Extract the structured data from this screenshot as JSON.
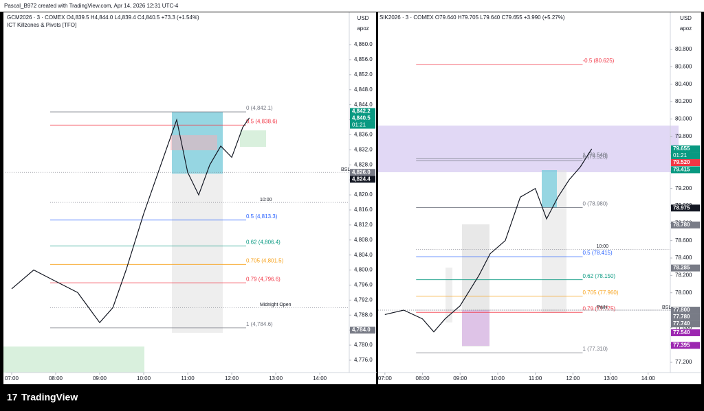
{
  "header": {
    "credit": "Pascal_B972 created with TradingView.com, Apr 14, 2026 12:31 UTC-4"
  },
  "panels": [
    {
      "symbol": "GCM2026 · 3 · COMEX  O4,839.5  H4,844.0  L4,839.4  C4,840.5  +73.3 (+1.54%)",
      "indicator": "ICT Killzones & Pivots [TFO]",
      "currency": "USD",
      "unit": "apoz",
      "ylim": [
        4772.7,
        4868.6
      ],
      "yticks": [
        {
          "value": 4776,
          "label": "4,776.0"
        },
        {
          "value": 4780,
          "label": "4,780.0"
        },
        {
          "value": 4784,
          "label": "4,784.0"
        },
        {
          "value": 4788,
          "label": "4,788.0"
        },
        {
          "value": 4792,
          "label": "4,792.0"
        },
        {
          "value": 4796,
          "label": "4,796.0"
        },
        {
          "value": 4800,
          "label": "4,800.0"
        },
        {
          "value": 4804,
          "label": "4,804.0"
        },
        {
          "value": 4808,
          "label": "4,808.0"
        },
        {
          "value": 4812,
          "label": "4,812.0"
        },
        {
          "value": 4816,
          "label": "4,816.0"
        },
        {
          "value": 4820,
          "label": "4,820.0"
        },
        {
          "value": 4824,
          "label": "4,824.0"
        },
        {
          "value": 4828,
          "label": "4,828.0"
        },
        {
          "value": 4832,
          "label": "4,832.0"
        },
        {
          "value": 4836,
          "label": "4,836.0"
        },
        {
          "value": 4840,
          "label": "4,840.0"
        },
        {
          "value": 4844,
          "label": "4,844.0"
        },
        {
          "value": 4848,
          "label": "4,848.0"
        },
        {
          "value": 4852,
          "label": "4,852.0"
        },
        {
          "value": 4856,
          "label": "4,856.0"
        },
        {
          "value": 4860,
          "label": "4,860.0"
        }
      ],
      "xlim": [
        6.86,
        14.67
      ],
      "xticks": [
        {
          "value": 7,
          "label": "07:00"
        },
        {
          "value": 8,
          "label": "08:00"
        },
        {
          "value": 9,
          "label": "09:00"
        },
        {
          "value": 10,
          "label": "10:00"
        },
        {
          "value": 11,
          "label": "11:00"
        },
        {
          "value": 12,
          "label": "12:00"
        },
        {
          "value": 13,
          "label": "13:00"
        },
        {
          "value": 14,
          "label": "14:00"
        }
      ],
      "x": [
        7.0,
        7.5,
        8.0,
        8.5,
        9.0,
        9.3,
        9.6,
        10.0,
        10.3,
        10.6,
        10.75,
        11.0,
        11.25,
        11.5,
        11.75,
        12.0,
        12.25,
        12.4
      ],
      "close": [
        4795,
        4800,
        4797,
        4794,
        4786,
        4790,
        4800,
        4815,
        4825,
        4835,
        4840,
        4826,
        4820,
        4828,
        4833,
        4830,
        4838,
        4840.5
      ],
      "levels": [
        {
          "label": "0 (4,842.1)",
          "value": 4842.1,
          "color": "#787b86"
        },
        {
          "label": "0.5 (4,838.6)",
          "value": 4838.6,
          "color": "#f23645"
        },
        {
          "label": "0.5 (4,813.3)",
          "value": 4813.3,
          "color": "#2962ff"
        },
        {
          "label": "0.62 (4,806.4)",
          "value": 4806.4,
          "color": "#089981"
        },
        {
          "label": "0.705 (4,801.5)",
          "value": 4801.5,
          "color": "#f7a21b"
        },
        {
          "label": "0.79 (4,796.6)",
          "value": 4796.6,
          "color": "#f23645"
        },
        {
          "label": "1 (4,784.6)",
          "value": 4784.6,
          "color": "#787b86"
        }
      ],
      "notes": [
        {
          "label": "10:00",
          "value": 4818
        },
        {
          "label": "Midnight Open",
          "value": 4790
        },
        {
          "label": "BSL",
          "value": 4826
        }
      ],
      "badges": [
        {
          "label": "4,842.2",
          "value": 4842.2,
          "color": "#089981"
        },
        {
          "label": "4,840.5",
          "value": 4840.5,
          "color": "#089981"
        },
        {
          "label": "4,826.0",
          "value": 4826,
          "color": "#787b86"
        },
        {
          "label": "4,824.4",
          "value": 4824.4,
          "color": "#131722"
        },
        {
          "label": "4,784.0",
          "value": 4784,
          "color": "#787b86"
        }
      ],
      "timer": "01:21"
    },
    {
      "symbol": "SIK2026 · 3 · COMEX  O79.640  H79.705  L79.640  C79.655  +3.990 (+5.27%)",
      "indicator": "",
      "currency": "USD",
      "unit": "apoz",
      "ylim": [
        77.082,
        81.226
      ],
      "yticks": [
        {
          "value": 77.2,
          "label": "77.200"
        },
        {
          "value": 77.4,
          "label": "77.400"
        },
        {
          "value": 77.6,
          "label": "77.600"
        },
        {
          "value": 77.8,
          "label": "77.800"
        },
        {
          "value": 78,
          "label": "78.000"
        },
        {
          "value": 78.2,
          "label": "78.200"
        },
        {
          "value": 78.4,
          "label": "78.400"
        },
        {
          "value": 78.6,
          "label": "78.600"
        },
        {
          "value": 78.8,
          "label": "78.800"
        },
        {
          "value": 79,
          "label": "79.000"
        },
        {
          "value": 79.2,
          "label": "79.200"
        },
        {
          "value": 79.4,
          "label": "79.400"
        },
        {
          "value": 79.6,
          "label": "79.600"
        },
        {
          "value": 79.8,
          "label": "79.800"
        },
        {
          "value": 80,
          "label": "80.000"
        },
        {
          "value": 80.2,
          "label": "80.200"
        },
        {
          "value": 80.4,
          "label": "80.400"
        },
        {
          "value": 80.6,
          "label": "80.600"
        },
        {
          "value": 80.8,
          "label": "80.800"
        }
      ],
      "xlim": [
        6.82,
        14.59
      ],
      "xticks": [
        {
          "value": 7,
          "label": "07:00"
        },
        {
          "value": 8,
          "label": "08:00"
        },
        {
          "value": 9,
          "label": "09:00"
        },
        {
          "value": 10,
          "label": "10:00"
        },
        {
          "value": 11,
          "label": "11:00"
        },
        {
          "value": 12,
          "label": "12:00"
        },
        {
          "value": 13,
          "label": "13:00"
        },
        {
          "value": 14,
          "label": "14:00"
        }
      ],
      "x": [
        7.0,
        7.5,
        8.0,
        8.3,
        8.6,
        9.0,
        9.5,
        9.8,
        10.2,
        10.6,
        11.0,
        11.3,
        11.6,
        11.9,
        12.2,
        12.5
      ],
      "close": [
        77.75,
        77.8,
        77.7,
        77.55,
        77.7,
        77.85,
        78.2,
        78.45,
        78.6,
        79.1,
        79.2,
        78.85,
        79.1,
        79.3,
        79.45,
        79.655
      ],
      "levels": [
        {
          "label": "-0.5 (80.625)",
          "value": 80.625,
          "color": "#f23645"
        },
        {
          "label": "1 (79.540)",
          "value": 79.54,
          "color": "#787b86"
        },
        {
          "label": "0 (79.520)",
          "value": 79.52,
          "color": "#787b86"
        },
        {
          "label": "0 (78.980)",
          "value": 78.98,
          "color": "#787b86"
        },
        {
          "label": "0.5 (78.415)",
          "value": 78.415,
          "color": "#2962ff"
        },
        {
          "label": "0.62 (78.150)",
          "value": 78.15,
          "color": "#089981"
        },
        {
          "label": "0.705 (77.960)",
          "value": 77.96,
          "color": "#f7a21b"
        },
        {
          "label": "0.79 (77.775)",
          "value": 77.775,
          "color": "#f23645"
        },
        {
          "label": "1 (77.310)",
          "value": 77.31,
          "color": "#787b86"
        }
      ],
      "notes": [
        {
          "label": "10:00",
          "value": 78.5
        },
        {
          "label": "PWH",
          "value": 77.8
        },
        {
          "label": "BSL",
          "value": 77.8
        }
      ],
      "badges": [
        {
          "label": "79.655",
          "value": 79.655,
          "color": "#089981"
        },
        {
          "label": "79.520",
          "value": 79.52,
          "color": "#f23645"
        },
        {
          "label": "79.415",
          "value": 79.415,
          "color": "#089981"
        },
        {
          "label": "78.975",
          "value": 78.975,
          "color": "#131722"
        },
        {
          "label": "78.780",
          "value": 78.78,
          "color": "#787b86"
        },
        {
          "label": "78.285",
          "value": 78.285,
          "color": "#787b86"
        },
        {
          "label": "77.800",
          "value": 77.8,
          "color": "#787b86"
        },
        {
          "label": "77.780",
          "value": 77.78,
          "color": "#787b86"
        },
        {
          "label": "77.740",
          "value": 77.74,
          "color": "#787b86"
        },
        {
          "label": "77.540",
          "value": 77.54,
          "color": "#9c27b0"
        },
        {
          "label": "77.395",
          "value": 77.395,
          "color": "#9c27b0"
        }
      ],
      "timer": "01:21"
    }
  ],
  "footer": {
    "brand": "TradingView"
  }
}
